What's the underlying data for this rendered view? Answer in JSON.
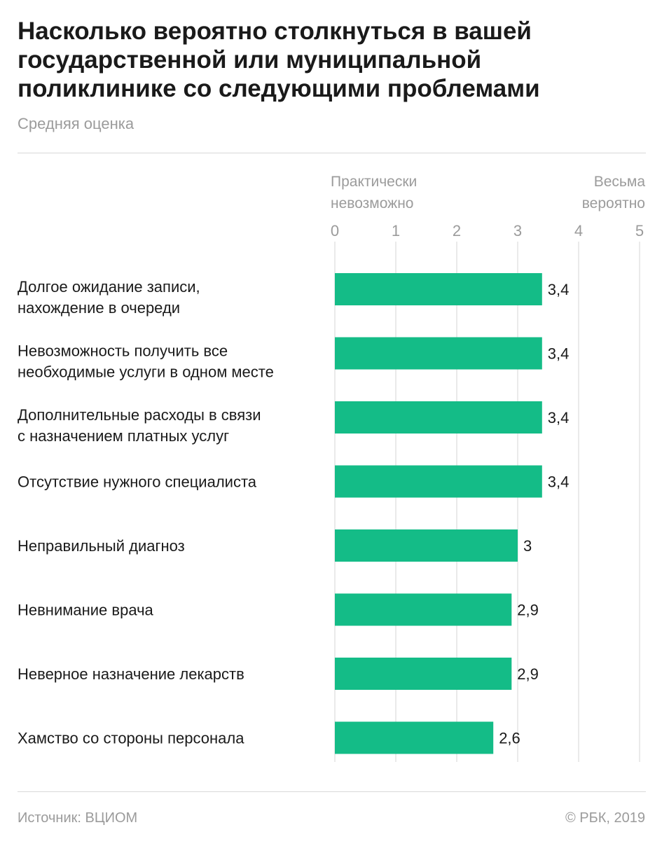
{
  "header": {
    "title_lines": [
      "Насколько вероятно столкнуться в вашей",
      "государственной или муниципальной",
      "поликлинике со следующими проблемами"
    ],
    "subtitle": "Средняя оценка"
  },
  "chart_data": {
    "type": "bar",
    "orientation": "horizontal",
    "xlim": [
      0,
      5
    ],
    "ticks": [
      "0",
      "1",
      "2",
      "3",
      "4",
      "5"
    ],
    "scale_labels": {
      "low": [
        "Практически",
        "невозможно"
      ],
      "high": [
        "Весьма",
        "вероятно"
      ]
    },
    "grid": true,
    "bar_color": "#14bc87",
    "categories": [
      [
        "Долгое ожидание записи,",
        "нахождение в очереди"
      ],
      [
        "Невозможность получить все",
        "необходимые услуги в одном месте"
      ],
      [
        "Дополнительные расходы в связи",
        "с назначением платных услуг"
      ],
      [
        "Отсутствие нужного специалиста"
      ],
      [
        "Неправильный диагноз"
      ],
      [
        "Невнимание врача"
      ],
      [
        "Неверное назначение лекарств"
      ],
      [
        "Хамство со стороны персонала"
      ]
    ],
    "values": [
      3.4,
      3.4,
      3.4,
      3.4,
      3,
      2.9,
      2.9,
      2.6
    ],
    "value_labels": [
      "3,4",
      "3,4",
      "3,4",
      "3,4",
      "3",
      "2,9",
      "2,9",
      "2,6"
    ]
  },
  "footer": {
    "source": "Источник: ВЦИОМ",
    "copyright": "© РБК, 2019"
  }
}
